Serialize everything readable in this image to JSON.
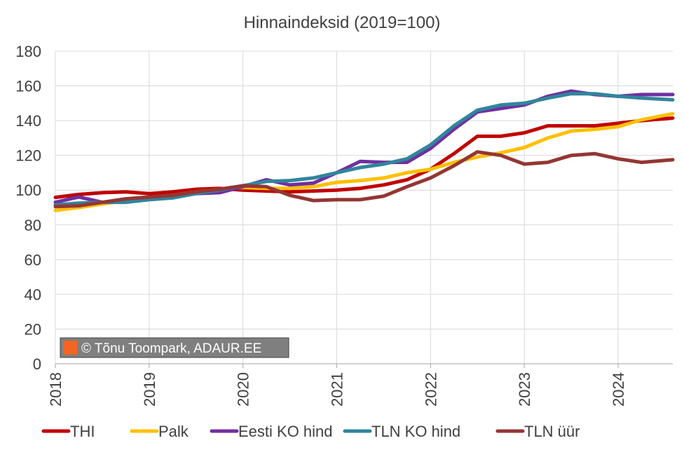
{
  "chart_data": {
    "type": "line",
    "title": "Hinnaindeksid (2019=100)",
    "ylim": [
      0,
      180
    ],
    "yticks": [
      "0",
      "20",
      "40",
      "60",
      "80",
      "100",
      "120",
      "140",
      "160",
      "180"
    ],
    "xlim": [
      "2018-01",
      "2024-08"
    ],
    "xticks": [
      "2018",
      "2019",
      "2020",
      "2021",
      "2022",
      "2023",
      "2024"
    ],
    "grid": true,
    "legend_position": "bottom",
    "watermark": "© Tõnu Toompark, ADAUR.EE",
    "series": [
      {
        "name": "THI",
        "color": "#c00000",
        "x": [
          "2018-01",
          "2018-04",
          "2018-07",
          "2018-10",
          "2019-01",
          "2019-04",
          "2019-07",
          "2019-10",
          "2020-01",
          "2020-04",
          "2020-07",
          "2020-10",
          "2021-01",
          "2021-04",
          "2021-07",
          "2021-10",
          "2022-01",
          "2022-04",
          "2022-07",
          "2022-10",
          "2023-01",
          "2023-04",
          "2023-07",
          "2023-10",
          "2024-01",
          "2024-04",
          "2024-08"
        ],
        "values": [
          95.8,
          97.5,
          98.5,
          99,
          98,
          99,
          100.5,
          101,
          100,
          99.5,
          99,
          99.5,
          100,
          101,
          103,
          106,
          112,
          121,
          131,
          131,
          133,
          137,
          137,
          137,
          138.5,
          140,
          141.5
        ]
      },
      {
        "name": "Palk",
        "color": "#ffc000",
        "x": [
          "2018-01",
          "2018-04",
          "2018-07",
          "2018-10",
          "2019-01",
          "2019-04",
          "2019-07",
          "2019-10",
          "2020-01",
          "2020-04",
          "2020-07",
          "2020-10",
          "2021-01",
          "2021-04",
          "2021-07",
          "2021-10",
          "2022-01",
          "2022-04",
          "2022-07",
          "2022-10",
          "2023-01",
          "2023-04",
          "2023-07",
          "2023-10",
          "2024-01",
          "2024-04",
          "2024-08"
        ],
        "values": [
          88.3,
          90,
          92,
          94,
          95,
          97,
          99,
          100.5,
          101.5,
          101,
          101,
          102,
          104.5,
          105.5,
          107,
          110,
          112,
          116,
          119,
          121.5,
          124.5,
          130,
          134,
          135,
          136.5,
          140.5,
          144
        ]
      },
      {
        "name": "Eesti KO hind",
        "color": "#7030a0",
        "x": [
          "2018-01",
          "2018-04",
          "2018-07",
          "2018-10",
          "2019-01",
          "2019-04",
          "2019-07",
          "2019-10",
          "2020-01",
          "2020-04",
          "2020-07",
          "2020-10",
          "2021-01",
          "2021-04",
          "2021-07",
          "2021-10",
          "2022-01",
          "2022-04",
          "2022-07",
          "2022-10",
          "2023-01",
          "2023-04",
          "2023-07",
          "2023-10",
          "2024-01",
          "2024-04",
          "2024-08"
        ],
        "values": [
          93,
          96,
          93,
          94,
          95.5,
          97,
          98,
          98.5,
          102,
          106,
          103,
          104,
          110,
          116.5,
          116,
          116,
          124,
          135,
          145,
          147,
          149,
          154,
          157,
          155,
          154,
          155,
          155
        ]
      },
      {
        "name": "TLN KO hind",
        "color": "#31859c",
        "x": [
          "2018-01",
          "2018-04",
          "2018-07",
          "2018-10",
          "2019-01",
          "2019-04",
          "2019-07",
          "2019-10",
          "2020-01",
          "2020-04",
          "2020-07",
          "2020-10",
          "2021-01",
          "2021-04",
          "2021-07",
          "2021-10",
          "2022-01",
          "2022-04",
          "2022-07",
          "2022-10",
          "2023-01",
          "2023-04",
          "2023-07",
          "2023-10",
          "2024-01",
          "2024-04",
          "2024-08"
        ],
        "values": [
          91.5,
          92.5,
          93,
          93,
          94.5,
          95.5,
          98,
          100,
          102.5,
          105,
          105.5,
          107,
          110,
          113,
          115,
          118,
          126,
          137,
          146,
          149,
          150,
          153,
          155.5,
          155.5,
          154,
          153,
          152
        ]
      },
      {
        "name": "TLN üür",
        "color": "#943634",
        "x": [
          "2018-01",
          "2018-04",
          "2018-07",
          "2018-10",
          "2019-01",
          "2019-04",
          "2019-07",
          "2019-10",
          "2020-01",
          "2020-04",
          "2020-07",
          "2020-10",
          "2021-01",
          "2021-04",
          "2021-07",
          "2021-10",
          "2022-01",
          "2022-04",
          "2022-07",
          "2022-10",
          "2023-01",
          "2023-04",
          "2023-07",
          "2023-10",
          "2024-01",
          "2024-04",
          "2024-08"
        ],
        "values": [
          90.5,
          91,
          93,
          95,
          96,
          97,
          99,
          100.5,
          102.5,
          102,
          97,
          94,
          94.5,
          94.5,
          96.5,
          102,
          107,
          114,
          122,
          120,
          115,
          116,
          120,
          121,
          118,
          116,
          117.5
        ]
      }
    ]
  }
}
